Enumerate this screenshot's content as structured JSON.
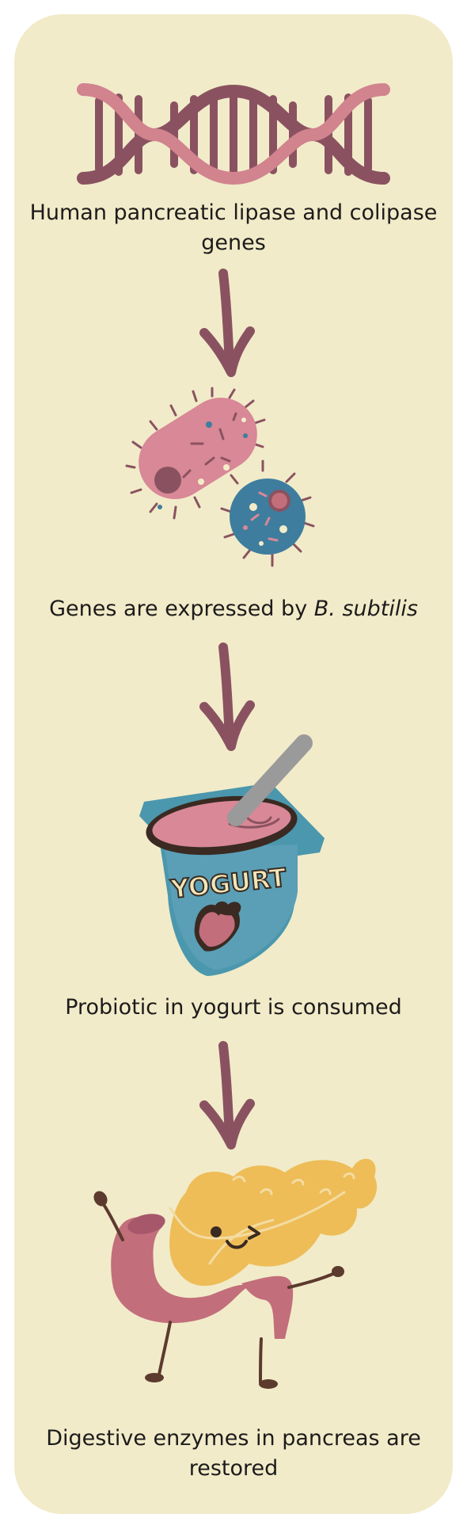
{
  "steps": [
    {
      "text": "Human pancreatic lipase and colipase genes",
      "illustration": "dna-double-helix"
    },
    {
      "text_before": "Genes are expressed by ",
      "text_italic": "B. subtilis",
      "illustration": "bacteria"
    },
    {
      "text": "Probiotic in yogurt is consumed",
      "illustration": "yogurt-cup",
      "logo_text": "YOGURT"
    },
    {
      "text": "Digestive enzymes in pancreas are restored",
      "illustration": "pancreas-character"
    }
  ],
  "colors": {
    "panel": "#f1ebc9",
    "arrow": "#8a5260",
    "dna_dark": "#8a5260",
    "dna_light": "#d1838e",
    "bacteria_pink": "#d88896",
    "bacteria_blue": "#3e7d9e",
    "yogurt_cup": "#4b97ad",
    "yogurt_pink": "#d88896",
    "pancreas_yellow": "#eebd58",
    "pancreas_pink": "#c36e7b"
  }
}
